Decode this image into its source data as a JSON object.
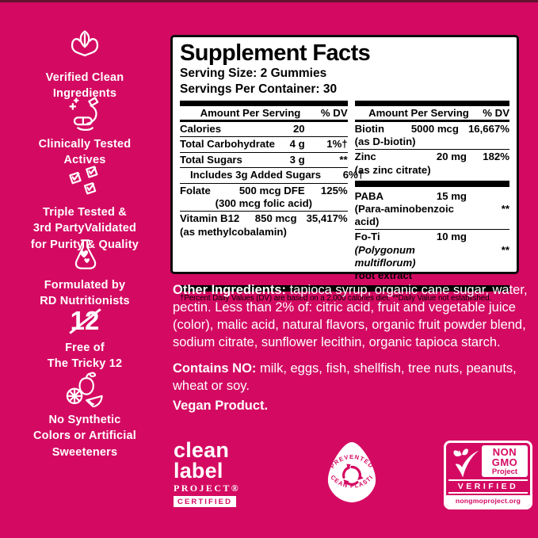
{
  "colors": {
    "background": "#D40A62",
    "top_strip": "#62132D",
    "panel_bg": "#FFFFFF",
    "panel_ink": "#000000",
    "text_on_pink": "#FFFFFF"
  },
  "sidebar": {
    "items": [
      {
        "icon": "hands-leaf-icon",
        "label": "Verified Clean\nIngredients"
      },
      {
        "icon": "microscope-icon",
        "label": "Clinically Tested\nActives"
      },
      {
        "icon": "checkboxes-icon",
        "label": "Triple Tested &\n3rd PartyValidated\nfor Purity & Quality"
      },
      {
        "icon": "flask-heart-icon",
        "label": "Formulated by\nRD Nutritionists"
      },
      {
        "icon": "tricky-12-icon",
        "label": "Free of\nThe Tricky 12",
        "glyph": "12"
      },
      {
        "icon": "fruits-icon",
        "label": "No Synthetic\nColors or Artificial\nSweeteners"
      }
    ]
  },
  "panel": {
    "title": "Supplement Facts",
    "serving_size": "Serving Size: 2 Gummies",
    "servings_per_container": "Servings Per Container: 30",
    "header": {
      "amount": "Amount Per Serving",
      "dv": "% DV"
    },
    "left_rows": [
      {
        "name": "Calories",
        "amount": "20",
        "dv": ""
      },
      {
        "name": "Total Carbohydrate",
        "amount": "4 g",
        "dv": "1%†"
      },
      {
        "name": "Total Sugars",
        "amount": "3 g",
        "dv": "**"
      },
      {
        "name": "Includes 3g Added Sugars",
        "amount": "",
        "dv": "6%†",
        "indent": true
      },
      {
        "name": "Folate",
        "amount": "500 mcg DFE",
        "dv": "125%",
        "subs": [
          {
            "text": "(300 mcg folic acid)",
            "align": "center"
          }
        ]
      },
      {
        "name": "Vitamin B12",
        "amount": "850 mcg",
        "dv": "35,417%",
        "last": true,
        "subs": [
          {
            "text": "(as methylcobalamin)"
          }
        ]
      }
    ],
    "right_rows": [
      {
        "name": "Biotin",
        "amount": "5000 mcg",
        "dv": "16,667%",
        "subs": [
          {
            "text": "(as D-biotin)"
          }
        ]
      },
      {
        "name": "Zinc",
        "amount": "20 mg",
        "dv": "182%",
        "no_sep": true,
        "subs": [
          {
            "text": "(as zinc citrate)"
          }
        ]
      },
      {
        "name": "PABA",
        "amount": "15 mg",
        "dv": "",
        "bar_before": true,
        "subs": [
          {
            "text": "(Para-aminobenzoic acid)",
            "dv": "**"
          }
        ]
      },
      {
        "name": "Fo-Ti",
        "amount": "10 mg",
        "dv": "",
        "last": true,
        "subs": [
          {
            "text": "(Polygonum multiflorum)",
            "italic": true,
            "dv": "**"
          },
          {
            "text": "root extract"
          }
        ]
      }
    ],
    "footnote": "†Percent Daily Values (DV) are based on a 2,000 calories diet. **Daily Value not established."
  },
  "other_ingredients": {
    "label": "Other Ingredients:",
    "text": " tapioca syrup, organic cane sugar, water, pectin. Less than 2% of: citric acid, fruit and vegetable juice (color), malic acid, natural flavors, organic fruit powder blend, sodium citrate, sunflower lecithin, organic tapioca starch."
  },
  "contains_no": {
    "label": "Contains NO:",
    "text": " milk, eggs, fish, shellfish, tree nuts, peanuts, wheat or soy."
  },
  "vegan": "Vegan Product.",
  "badges": {
    "clean_label": {
      "line1": "clean",
      "line2": "label",
      "line3": "PROJECT®",
      "certified": "CERTIFIED"
    },
    "ocean": {
      "icon": "recycle-icon",
      "top": "PREVENTED",
      "bottom": "OCEAN PLASTIC"
    },
    "non_gmo": {
      "icon": "butterfly-check-icon",
      "word1": "NON",
      "word2": "GMO",
      "word3": "Project",
      "verified": "VERIFIED",
      "url": "nongmoproject.org"
    }
  }
}
